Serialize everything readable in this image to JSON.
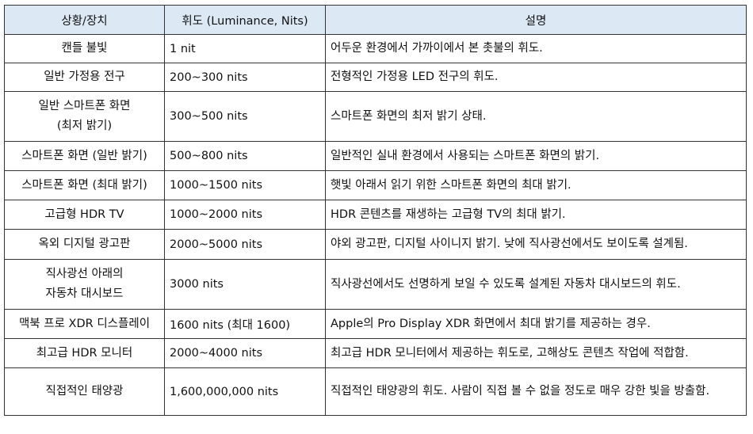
{
  "table": {
    "headers": [
      "상황/장치",
      "휘도 (Luminance, Nits)",
      "설명"
    ],
    "rows": [
      {
        "situation": [
          "캔들 불빛"
        ],
        "luminance": "1 nit",
        "description": "어두운 환경에서 가까이에서 본 촛불의 휘도."
      },
      {
        "situation": [
          "일반 가정용 전구"
        ],
        "luminance": "200~300 nits",
        "description": "전형적인 가정용 LED 전구의 휘도."
      },
      {
        "situation": [
          "일반 스마트폰 화면",
          "(최저 밝기)"
        ],
        "luminance": "300~500 nits",
        "description": "스마트폰 화면의 최저 밝기 상태."
      },
      {
        "situation": [
          "스마트폰 화면 (일반 밝기)"
        ],
        "luminance": "500~800 nits",
        "description": "일반적인 실내 환경에서 사용되는 스마트폰 화면의 밝기."
      },
      {
        "situation": [
          "스마트폰 화면 (최대 밝기)"
        ],
        "luminance": "1000~1500 nits",
        "description": "햇빛 아래서 읽기 위한 스마트폰 화면의 최대 밝기."
      },
      {
        "situation": [
          "고급형 HDR TV"
        ],
        "luminance": "1000~2000 nits",
        "description": "HDR 콘텐츠를 재생하는 고급형 TV의 최대 밝기."
      },
      {
        "situation": [
          "옥외 디지털 광고판"
        ],
        "luminance": "2000~5000 nits",
        "description": "야외 광고판, 디지털 사이니지 밝기. 낮에 직사광선에서도 보이도록 설계됨."
      },
      {
        "situation": [
          "직사광선 아래의",
          "자동차 대시보드"
        ],
        "luminance": "3000 nits",
        "description": "직사광선에서도 선명하게 보일 수 있도록 설계된 자동차 대시보드의 휘도."
      },
      {
        "situation": [
          "맥북 프로 XDR 디스플레이"
        ],
        "luminance": "1600 nits (최대 1600)",
        "description": "Apple의 Pro Display XDR 화면에서 최대 밝기를 제공하는 경우."
      },
      {
        "situation": [
          "최고급 HDR 모니터"
        ],
        "luminance": "2000~4000 nits",
        "description": "최고급 HDR 모니터에서 제공하는 휘도로, 고해상도 콘텐츠 작업에 적합함."
      },
      {
        "situation": [
          "직접적인 태양광"
        ],
        "luminance": "1,600,000,000 nits",
        "description": "직접적인 태양광의 휘도. 사람이 직접 볼 수 없을 정도로 매우 강한 빛을 방출함."
      }
    ]
  }
}
